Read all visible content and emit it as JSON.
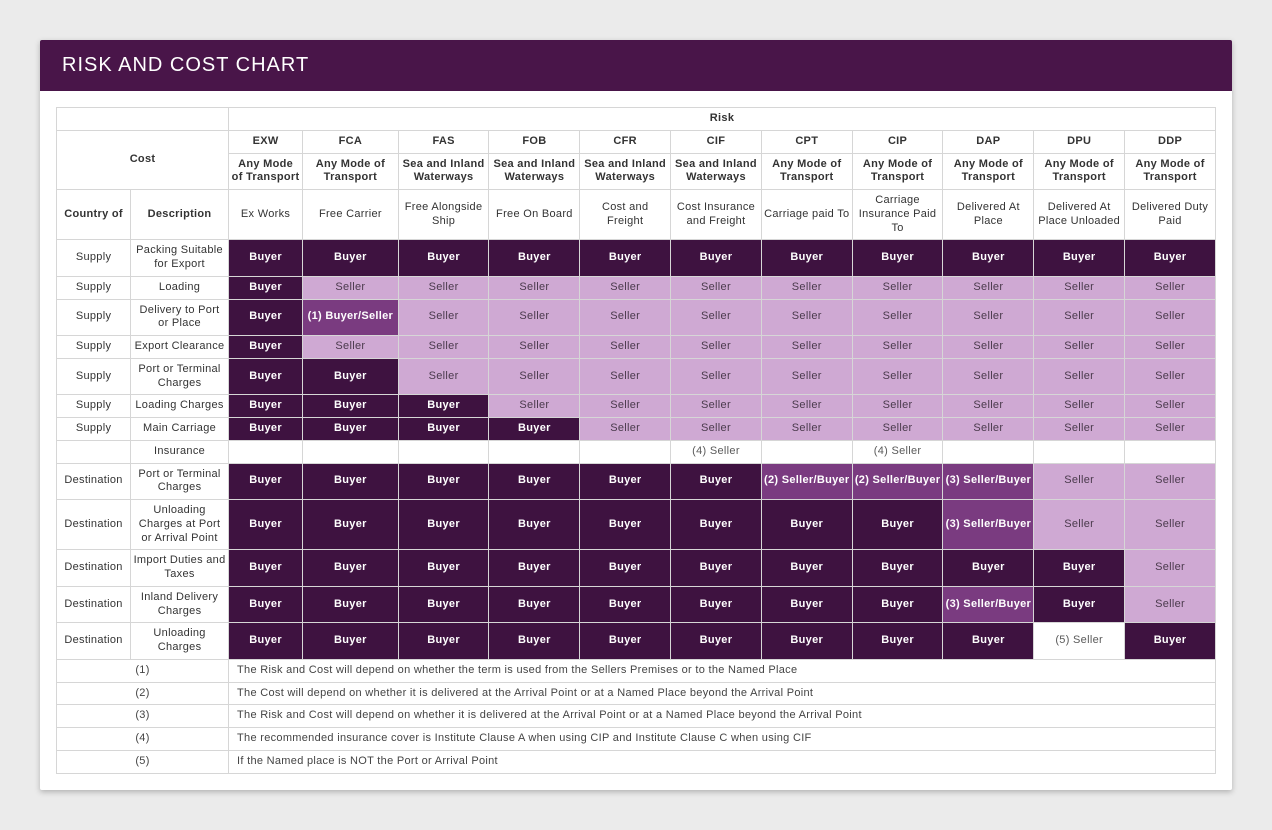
{
  "title": "RISK AND COST CHART",
  "colors": {
    "header_bg": "#491549",
    "buyer_bg": "#3e1240",
    "seller_bg": "#cfa9d3",
    "mix_bg": "#7a3b80",
    "border": "#d6d6d6",
    "page_bg": "#ebebeb"
  },
  "top": {
    "risk_label": "Risk",
    "cost_label": "Cost",
    "terms": [
      "EXW",
      "FCA",
      "FAS",
      "FOB",
      "CFR",
      "CIF",
      "CPT",
      "CIP",
      "DAP",
      "DPU",
      "DDP"
    ],
    "modes": [
      "Any Mode of Transport",
      "Any Mode of Transport",
      "Sea and Inland Waterways",
      "Sea and Inland Waterways",
      "Sea and Inland Waterways",
      "Sea and Inland Waterways",
      "Any Mode of Transport",
      "Any Mode of Transport",
      "Any Mode of Transport",
      "Any Mode of Transport",
      "Any Mode of Transport"
    ],
    "left_sub1": "Country of",
    "left_sub2": "Description",
    "descs": [
      "Ex Works",
      "Free Carrier",
      "Free Alongside Ship",
      "Free On Board",
      "Cost and Freight",
      "Cost Insurance and Freight",
      "Carriage paid To",
      "Carriage Insurance Paid To",
      "Delivered At Place",
      "Delivered At Place Unloaded",
      "Delivered Duty Paid"
    ]
  },
  "rows": [
    {
      "country": "Supply",
      "desc": "Packing Suitable for Export",
      "cells": [
        {
          "t": "Buyer",
          "c": "buyer"
        },
        {
          "t": "Buyer",
          "c": "buyer"
        },
        {
          "t": "Buyer",
          "c": "buyer"
        },
        {
          "t": "Buyer",
          "c": "buyer"
        },
        {
          "t": "Buyer",
          "c": "buyer"
        },
        {
          "t": "Buyer",
          "c": "buyer"
        },
        {
          "t": "Buyer",
          "c": "buyer"
        },
        {
          "t": "Buyer",
          "c": "buyer"
        },
        {
          "t": "Buyer",
          "c": "buyer"
        },
        {
          "t": "Buyer",
          "c": "buyer"
        },
        {
          "t": "Buyer",
          "c": "buyer"
        }
      ]
    },
    {
      "country": "Supply",
      "desc": "Loading",
      "cells": [
        {
          "t": "Buyer",
          "c": "buyer"
        },
        {
          "t": "Seller",
          "c": "seller"
        },
        {
          "t": "Seller",
          "c": "seller"
        },
        {
          "t": "Seller",
          "c": "seller"
        },
        {
          "t": "Seller",
          "c": "seller"
        },
        {
          "t": "Seller",
          "c": "seller"
        },
        {
          "t": "Seller",
          "c": "seller"
        },
        {
          "t": "Seller",
          "c": "seller"
        },
        {
          "t": "Seller",
          "c": "seller"
        },
        {
          "t": "Seller",
          "c": "seller"
        },
        {
          "t": "Seller",
          "c": "seller"
        }
      ]
    },
    {
      "country": "Supply",
      "desc": "Delivery to Port or Place",
      "cells": [
        {
          "t": "Buyer",
          "c": "buyer"
        },
        {
          "t": "(1) Buyer/Seller",
          "c": "mix"
        },
        {
          "t": "Seller",
          "c": "seller"
        },
        {
          "t": "Seller",
          "c": "seller"
        },
        {
          "t": "Seller",
          "c": "seller"
        },
        {
          "t": "Seller",
          "c": "seller"
        },
        {
          "t": "Seller",
          "c": "seller"
        },
        {
          "t": "Seller",
          "c": "seller"
        },
        {
          "t": "Seller",
          "c": "seller"
        },
        {
          "t": "Seller",
          "c": "seller"
        },
        {
          "t": "Seller",
          "c": "seller"
        }
      ]
    },
    {
      "country": "Supply",
      "desc": "Export Clearance",
      "cells": [
        {
          "t": "Buyer",
          "c": "buyer"
        },
        {
          "t": "Seller",
          "c": "seller"
        },
        {
          "t": "Seller",
          "c": "seller"
        },
        {
          "t": "Seller",
          "c": "seller"
        },
        {
          "t": "Seller",
          "c": "seller"
        },
        {
          "t": "Seller",
          "c": "seller"
        },
        {
          "t": "Seller",
          "c": "seller"
        },
        {
          "t": "Seller",
          "c": "seller"
        },
        {
          "t": "Seller",
          "c": "seller"
        },
        {
          "t": "Seller",
          "c": "seller"
        },
        {
          "t": "Seller",
          "c": "seller"
        }
      ]
    },
    {
      "country": "Supply",
      "desc": "Port or Terminal Charges",
      "cells": [
        {
          "t": "Buyer",
          "c": "buyer"
        },
        {
          "t": "Buyer",
          "c": "buyer"
        },
        {
          "t": "Seller",
          "c": "seller"
        },
        {
          "t": "Seller",
          "c": "seller"
        },
        {
          "t": "Seller",
          "c": "seller"
        },
        {
          "t": "Seller",
          "c": "seller"
        },
        {
          "t": "Seller",
          "c": "seller"
        },
        {
          "t": "Seller",
          "c": "seller"
        },
        {
          "t": "Seller",
          "c": "seller"
        },
        {
          "t": "Seller",
          "c": "seller"
        },
        {
          "t": "Seller",
          "c": "seller"
        }
      ]
    },
    {
      "country": "Supply",
      "desc": "Loading Charges",
      "cells": [
        {
          "t": "Buyer",
          "c": "buyer"
        },
        {
          "t": "Buyer",
          "c": "buyer"
        },
        {
          "t": "Buyer",
          "c": "buyer"
        },
        {
          "t": "Seller",
          "c": "seller"
        },
        {
          "t": "Seller",
          "c": "seller"
        },
        {
          "t": "Seller",
          "c": "seller"
        },
        {
          "t": "Seller",
          "c": "seller"
        },
        {
          "t": "Seller",
          "c": "seller"
        },
        {
          "t": "Seller",
          "c": "seller"
        },
        {
          "t": "Seller",
          "c": "seller"
        },
        {
          "t": "Seller",
          "c": "seller"
        }
      ]
    },
    {
      "country": "Supply",
      "desc": "Main Carriage",
      "cells": [
        {
          "t": "Buyer",
          "c": "buyer"
        },
        {
          "t": "Buyer",
          "c": "buyer"
        },
        {
          "t": "Buyer",
          "c": "buyer"
        },
        {
          "t": "Buyer",
          "c": "buyer"
        },
        {
          "t": "Seller",
          "c": "seller"
        },
        {
          "t": "Seller",
          "c": "seller"
        },
        {
          "t": "Seller",
          "c": "seller"
        },
        {
          "t": "Seller",
          "c": "seller"
        },
        {
          "t": "Seller",
          "c": "seller"
        },
        {
          "t": "Seller",
          "c": "seller"
        },
        {
          "t": "Seller",
          "c": "seller"
        }
      ]
    },
    {
      "country": "",
      "desc": "Insurance",
      "cells": [
        {
          "t": "",
          "c": "note"
        },
        {
          "t": "",
          "c": "note"
        },
        {
          "t": "",
          "c": "note"
        },
        {
          "t": "",
          "c": "note"
        },
        {
          "t": "",
          "c": "note"
        },
        {
          "t": "(4) Seller",
          "c": "note"
        },
        {
          "t": "",
          "c": "note"
        },
        {
          "t": "(4) Seller",
          "c": "note"
        },
        {
          "t": "",
          "c": "note"
        },
        {
          "t": "",
          "c": "note"
        },
        {
          "t": "",
          "c": "note"
        }
      ]
    },
    {
      "country": "Destination",
      "desc": "Port or Terminal Charges",
      "cells": [
        {
          "t": "Buyer",
          "c": "buyer"
        },
        {
          "t": "Buyer",
          "c": "buyer"
        },
        {
          "t": "Buyer",
          "c": "buyer"
        },
        {
          "t": "Buyer",
          "c": "buyer"
        },
        {
          "t": "Buyer",
          "c": "buyer"
        },
        {
          "t": "Buyer",
          "c": "buyer"
        },
        {
          "t": "(2) Seller/Buyer",
          "c": "mix"
        },
        {
          "t": "(2) Seller/Buyer",
          "c": "mix"
        },
        {
          "t": "(3) Seller/Buyer",
          "c": "mix"
        },
        {
          "t": "Seller",
          "c": "seller"
        },
        {
          "t": "Seller",
          "c": "seller"
        }
      ]
    },
    {
      "country": "Destination",
      "desc": "Unloading Charges at Port or Arrival Point",
      "cells": [
        {
          "t": "Buyer",
          "c": "buyer"
        },
        {
          "t": "Buyer",
          "c": "buyer"
        },
        {
          "t": "Buyer",
          "c": "buyer"
        },
        {
          "t": "Buyer",
          "c": "buyer"
        },
        {
          "t": "Buyer",
          "c": "buyer"
        },
        {
          "t": "Buyer",
          "c": "buyer"
        },
        {
          "t": "Buyer",
          "c": "buyer"
        },
        {
          "t": "Buyer",
          "c": "buyer"
        },
        {
          "t": "(3) Seller/Buyer",
          "c": "mix"
        },
        {
          "t": "Seller",
          "c": "seller"
        },
        {
          "t": "Seller",
          "c": "seller"
        }
      ]
    },
    {
      "country": "Destination",
      "desc": "Import Duties and Taxes",
      "cells": [
        {
          "t": "Buyer",
          "c": "buyer"
        },
        {
          "t": "Buyer",
          "c": "buyer"
        },
        {
          "t": "Buyer",
          "c": "buyer"
        },
        {
          "t": "Buyer",
          "c": "buyer"
        },
        {
          "t": "Buyer",
          "c": "buyer"
        },
        {
          "t": "Buyer",
          "c": "buyer"
        },
        {
          "t": "Buyer",
          "c": "buyer"
        },
        {
          "t": "Buyer",
          "c": "buyer"
        },
        {
          "t": "Buyer",
          "c": "buyer"
        },
        {
          "t": "Buyer",
          "c": "buyer"
        },
        {
          "t": "Seller",
          "c": "seller"
        }
      ]
    },
    {
      "country": "Destination",
      "desc": "Inland Delivery Charges",
      "cells": [
        {
          "t": "Buyer",
          "c": "buyer"
        },
        {
          "t": "Buyer",
          "c": "buyer"
        },
        {
          "t": "Buyer",
          "c": "buyer"
        },
        {
          "t": "Buyer",
          "c": "buyer"
        },
        {
          "t": "Buyer",
          "c": "buyer"
        },
        {
          "t": "Buyer",
          "c": "buyer"
        },
        {
          "t": "Buyer",
          "c": "buyer"
        },
        {
          "t": "Buyer",
          "c": "buyer"
        },
        {
          "t": "(3) Seller/Buyer",
          "c": "mix"
        },
        {
          "t": "Buyer",
          "c": "buyer"
        },
        {
          "t": "Seller",
          "c": "seller"
        }
      ]
    },
    {
      "country": "Destination",
      "desc": "Unloading Charges",
      "cells": [
        {
          "t": "Buyer",
          "c": "buyer"
        },
        {
          "t": "Buyer",
          "c": "buyer"
        },
        {
          "t": "Buyer",
          "c": "buyer"
        },
        {
          "t": "Buyer",
          "c": "buyer"
        },
        {
          "t": "Buyer",
          "c": "buyer"
        },
        {
          "t": "Buyer",
          "c": "buyer"
        },
        {
          "t": "Buyer",
          "c": "buyer"
        },
        {
          "t": "Buyer",
          "c": "buyer"
        },
        {
          "t": "Buyer",
          "c": "buyer"
        },
        {
          "t": "(5) Seller",
          "c": "note"
        },
        {
          "t": "Buyer",
          "c": "buyer"
        }
      ]
    }
  ],
  "footnotes": [
    {
      "key": "(1)",
      "text": "The Risk and Cost will depend on whether the term is used from the Sellers Premises or to the Named Place"
    },
    {
      "key": "(2)",
      "text": "The Cost will depend on whether it is delivered at the Arrival Point or at a Named Place beyond the Arrival Point"
    },
    {
      "key": "(3)",
      "text": "The Risk and Cost will depend on whether it is delivered at the Arrival Point or at a Named Place beyond the Arrival Point"
    },
    {
      "key": "(4)",
      "text": "The recommended insurance cover is Institute Clause A when using CIP and Institute Clause C when using CIF"
    },
    {
      "key": "(5)",
      "text": "If the Named place is NOT the Port or Arrival Point"
    }
  ]
}
